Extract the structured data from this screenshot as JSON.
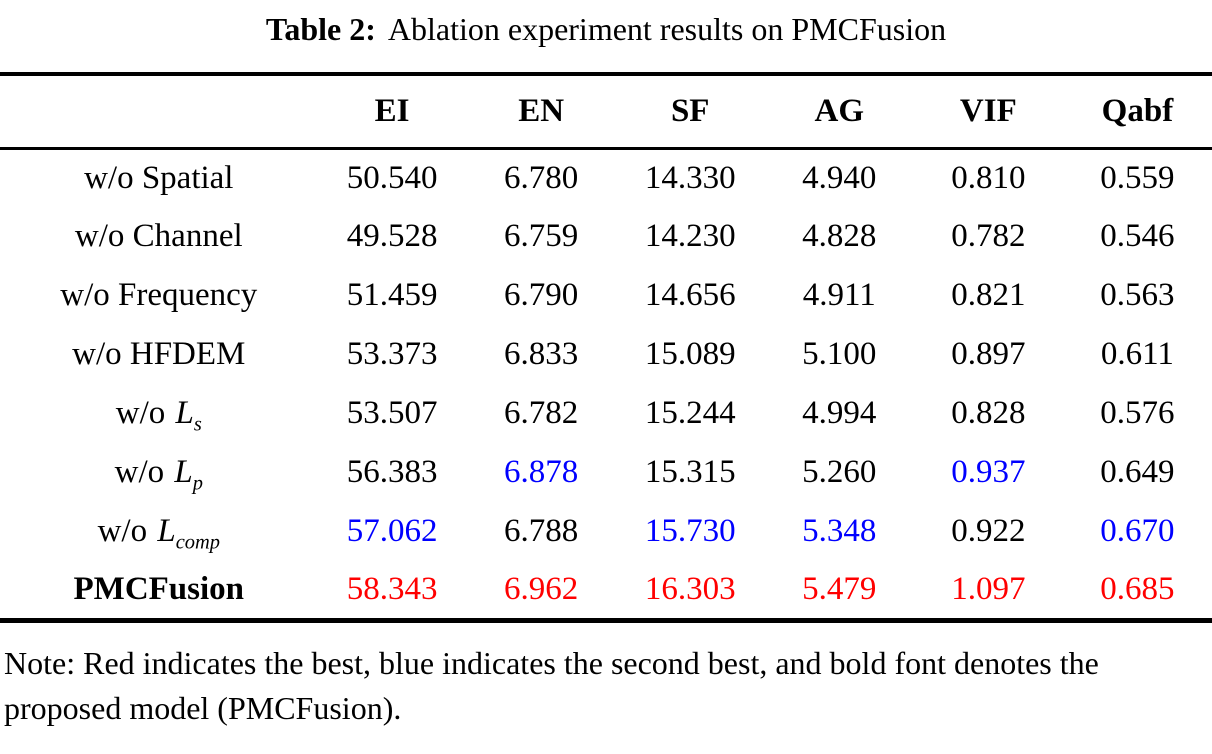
{
  "title": {
    "label": "Table 2:",
    "text": "Ablation experiment results on PMCFusion"
  },
  "colors": {
    "black": "#000000",
    "blue": "#0000ff",
    "red": "#ff0000"
  },
  "chart_data": {
    "type": "table",
    "title": "Table 2: Ablation experiment results on PMCFusion",
    "columns": [
      "",
      "EI",
      "EN",
      "SF",
      "AG",
      "VIF",
      "Qabf"
    ],
    "rows": [
      {
        "label": {
          "text": "w/o Spatial",
          "math": "",
          "sub": "",
          "bold": false
        },
        "values": [
          "50.540",
          "6.780",
          "14.330",
          "4.940",
          "0.810",
          "0.559"
        ],
        "colors": [
          "black",
          "black",
          "black",
          "black",
          "black",
          "black"
        ]
      },
      {
        "label": {
          "text": "w/o Channel",
          "math": "",
          "sub": "",
          "bold": false
        },
        "values": [
          "49.528",
          "6.759",
          "14.230",
          "4.828",
          "0.782",
          "0.546"
        ],
        "colors": [
          "black",
          "black",
          "black",
          "black",
          "black",
          "black"
        ]
      },
      {
        "label": {
          "text": "w/o Frequency",
          "math": "",
          "sub": "",
          "bold": false
        },
        "values": [
          "51.459",
          "6.790",
          "14.656",
          "4.911",
          "0.821",
          "0.563"
        ],
        "colors": [
          "black",
          "black",
          "black",
          "black",
          "black",
          "black"
        ]
      },
      {
        "label": {
          "text": "w/o HFDEM",
          "math": "",
          "sub": "",
          "bold": false
        },
        "values": [
          "53.373",
          "6.833",
          "15.089",
          "5.100",
          "0.897",
          "0.611"
        ],
        "colors": [
          "black",
          "black",
          "black",
          "black",
          "black",
          "black"
        ]
      },
      {
        "label": {
          "text": "w/o",
          "math": "L",
          "sub": "s",
          "bold": false
        },
        "values": [
          "53.507",
          "6.782",
          "15.244",
          "4.994",
          "0.828",
          "0.576"
        ],
        "colors": [
          "black",
          "black",
          "black",
          "black",
          "black",
          "black"
        ]
      },
      {
        "label": {
          "text": "w/o",
          "math": "L",
          "sub": "p",
          "bold": false
        },
        "values": [
          "56.383",
          "6.878",
          "15.315",
          "5.260",
          "0.937",
          "0.649"
        ],
        "colors": [
          "black",
          "blue",
          "black",
          "black",
          "blue",
          "black"
        ]
      },
      {
        "label": {
          "text": "w/o",
          "math": "L",
          "sub": "comp",
          "bold": false
        },
        "values": [
          "57.062",
          "6.788",
          "15.730",
          "5.348",
          "0.922",
          "0.670"
        ],
        "colors": [
          "blue",
          "black",
          "blue",
          "blue",
          "black",
          "blue"
        ]
      },
      {
        "label": {
          "text": "PMCFusion",
          "math": "",
          "sub": "",
          "bold": true
        },
        "values": [
          "58.343",
          "6.962",
          "16.303",
          "5.479",
          "1.097",
          "0.685"
        ],
        "colors": [
          "red",
          "red",
          "red",
          "red",
          "red",
          "red"
        ]
      }
    ],
    "legend_note": "Red = best, blue = second best, bold = proposed model"
  },
  "note": {
    "text": "Note: Red indicates the best, blue indicates the second best, and bold font denotes the proposed model (PMCFusion)."
  }
}
